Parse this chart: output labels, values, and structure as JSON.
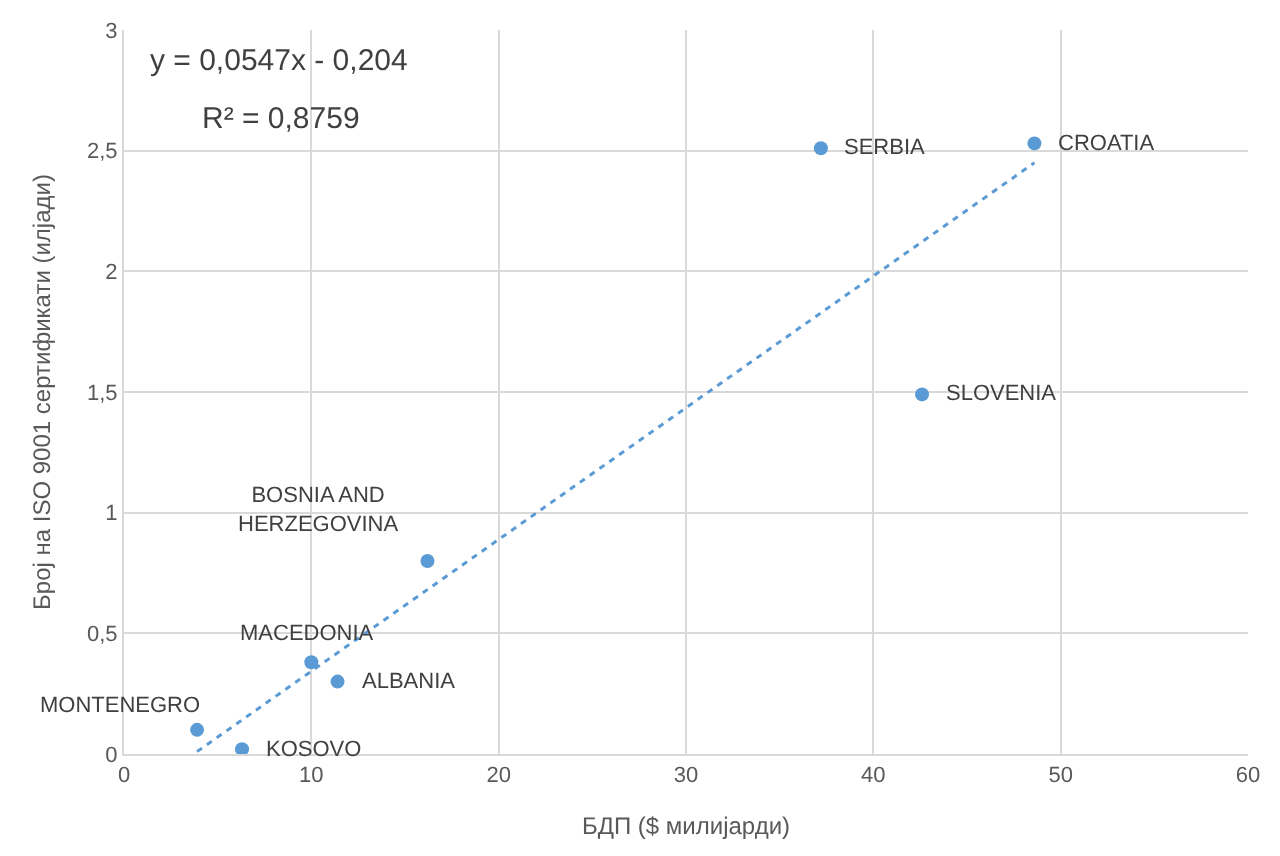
{
  "chart_data": {
    "type": "scatter",
    "xlabel": "БДП ($ милијарди)",
    "ylabel": "Број на ISO 9001 сертификати (илјади)",
    "x": [
      37.2,
      48.6,
      42.6,
      16.2,
      10.0,
      11.4,
      3.9,
      6.3
    ],
    "series": [
      {
        "color": "#5b9bd5",
        "values": [
          2.51,
          2.53,
          1.49,
          0.8,
          0.38,
          0.3,
          0.1,
          0.02
        ],
        "marker": "circle"
      },
      {
        "type": "line",
        "color": "#5b9bd5",
        "x": [
          3.9,
          48.6
        ],
        "values": [
          0.01,
          2.45
        ],
        "line_style": "dotted",
        "marker": "none"
      }
    ],
    "annotations": [
      {
        "text": "SERBIA",
        "x": 37.2,
        "y": 2.51
      },
      {
        "text": "CROATIA",
        "x": 48.6,
        "y": 2.53
      },
      {
        "text": "SLOVENIA",
        "x": 42.6,
        "y": 1.49
      },
      {
        "text": "BOSNIA AND\nHERZEGOVINA",
        "x": 16.2,
        "y": 0.8
      },
      {
        "text": "MACEDONIA",
        "x": 10.0,
        "y": 0.38
      },
      {
        "text": "ALBANIA",
        "x": 11.4,
        "y": 0.3
      },
      {
        "text": "MONTENEGRO",
        "x": 3.9,
        "y": 0.1
      },
      {
        "text": "KOSOVO",
        "x": 6.3,
        "y": 0.02
      },
      "y = 0,0547x - 0,204",
      "R² = 0,8759"
    ],
    "xlim": [
      0,
      60
    ],
    "xticks": [
      0,
      10,
      20,
      30,
      40,
      50,
      60
    ],
    "ylim": [
      0,
      3
    ],
    "yticks": [
      0,
      {
        "value": 0.5,
        "label": "0,5"
      },
      1,
      {
        "value": 1.5,
        "label": "1,5"
      },
      2,
      {
        "value": 2.5,
        "label": "2,5"
      },
      3
    ],
    "grid": true
  }
}
